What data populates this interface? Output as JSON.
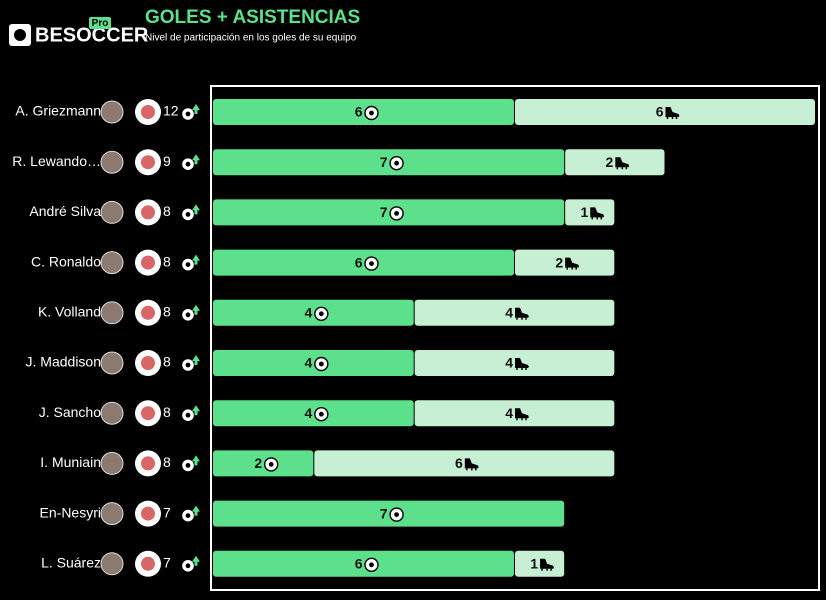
{
  "chart_data": {
    "type": "stacked-barh",
    "brand": "BESOCCER",
    "brand_badge": "Pro",
    "title": "GOLES + ASISTENCIAS",
    "subtitle": "Nivel de participación en los goles de su equipo",
    "categories": [
      "A. Griezmann",
      "R. Lewando…",
      "André Silva",
      "C. Ronaldo",
      "K. Volland",
      "J. Maddison",
      "J. Sancho",
      "I. Muniain",
      "En-Nesyri",
      "L. Suárez"
    ],
    "totals": [
      12,
      9,
      8,
      8,
      8,
      8,
      8,
      8,
      7,
      7
    ],
    "series": [
      {
        "name": "Goles",
        "color": "#5ce08c",
        "icon": "ball",
        "values": [
          6,
          7,
          7,
          6,
          4,
          4,
          4,
          2,
          7,
          6
        ]
      },
      {
        "name": "Asistencias",
        "color": "#c6efd4",
        "icon": "boot",
        "values": [
          6,
          2,
          1,
          2,
          4,
          4,
          4,
          6,
          0,
          1
        ]
      }
    ],
    "xlim": [
      0,
      12
    ]
  }
}
